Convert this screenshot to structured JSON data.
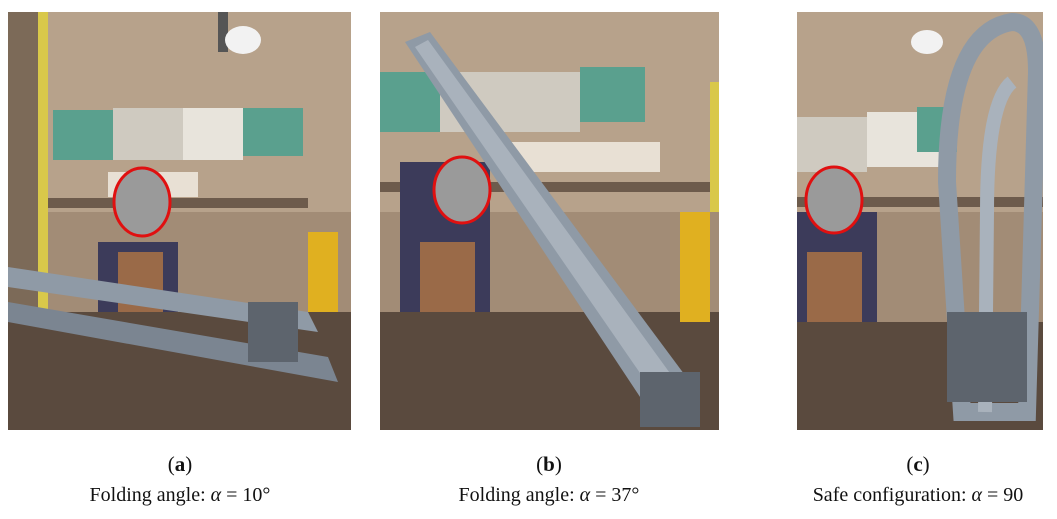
{
  "panels": [
    {
      "id": "a",
      "letter": "a",
      "caption_prefix": "Folding angle: ",
      "symbol": "α",
      "caption_suffix": " = 10°"
    },
    {
      "id": "b",
      "letter": "b",
      "caption_prefix": "Folding angle: ",
      "symbol": "α",
      "caption_suffix": " = 37°"
    },
    {
      "id": "c",
      "letter": "c",
      "caption_prefix": "Safe configuration: ",
      "symbol": "α",
      "caption_suffix": " = 90"
    }
  ],
  "colors": {
    "wall": "#a8927c",
    "cabinet": "#5aa08e",
    "face_mask": "#9a9a9a",
    "face_outline": "#e01010",
    "metal": "#8f9aa6"
  }
}
